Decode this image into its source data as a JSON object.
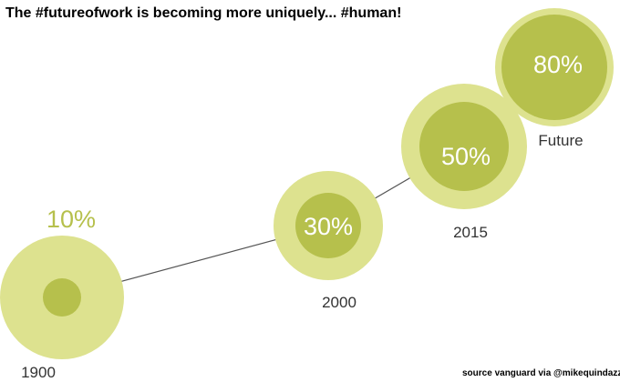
{
  "headline": "The #futureofwork is becoming more uniquely... #human!",
  "source_credit": "source vanguard via @mikequindazzi",
  "colors": {
    "outer_circle": "#dde28f",
    "inner_circle": "#b6c04c",
    "connector_line": "#555555",
    "inside_text": "#ffffff",
    "outside_percent_text": "#b6c04c",
    "year_text": "#333333"
  },
  "stages": [
    {
      "year": "1900",
      "percent_label": "10%"
    },
    {
      "year": "2000",
      "percent_label": "30%"
    },
    {
      "year": "2015",
      "percent_label": "50%"
    },
    {
      "year": "Future",
      "percent_label": "80%"
    }
  ]
}
